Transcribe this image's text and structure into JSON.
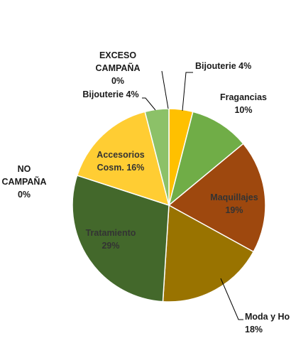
{
  "chart_data": {
    "type": "pie",
    "slices": [
      {
        "lines": [
          "Bijouterie 4%"
        ],
        "value": 4,
        "color": "#FFC000"
      },
      {
        "lines": [
          "Fragancias",
          "10%"
        ],
        "value": 10,
        "color": "#70AD47"
      },
      {
        "lines": [
          "Maquillajes",
          "19%"
        ],
        "value": 19,
        "color": "#9E480E"
      },
      {
        "lines": [
          "Moda y Ho",
          "18%"
        ],
        "value": 18,
        "color": "#997300"
      },
      {
        "lines": [
          "Tratamiento",
          "29%"
        ],
        "value": 29,
        "color": "#43682B"
      },
      {
        "lines": [
          "NO",
          "CAMPAÑA",
          "0%"
        ],
        "value": 0,
        "color": "#43682B"
      },
      {
        "lines": [
          "Accesorios",
          "Cosm. 16%"
        ],
        "value": 16,
        "color": "#FFCD33"
      },
      {
        "lines": [
          "Bijouterie 4%"
        ],
        "value": 4,
        "color": "#8CC168"
      },
      {
        "lines": [
          "EXCESO",
          "CAMPAÑA",
          "0%"
        ],
        "value": 0,
        "color": "#8CC168"
      }
    ]
  }
}
